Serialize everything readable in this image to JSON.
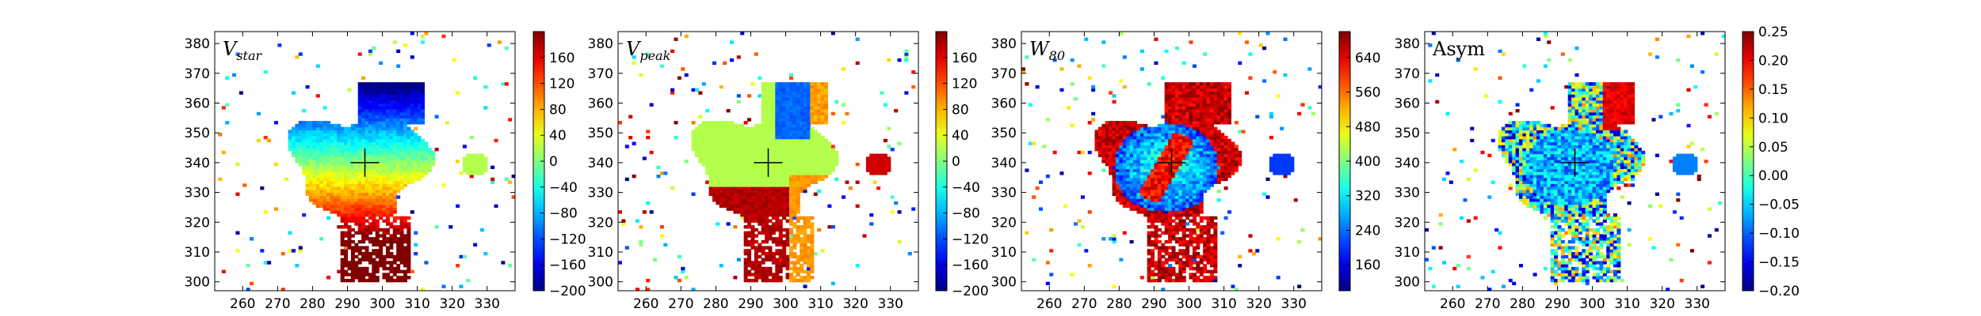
{
  "figure": {
    "background": "#ffffff"
  },
  "chart_data": [
    {
      "type": "heatmap",
      "label_main": "V",
      "label_sub": "star",
      "xlim": [
        252,
        338
      ],
      "ylim": [
        297,
        384
      ],
      "xticks": [
        "260",
        "270",
        "280",
        "290",
        "300",
        "310",
        "320",
        "330"
      ],
      "yticks": [
        "300",
        "310",
        "320",
        "330",
        "340",
        "350",
        "360",
        "370",
        "380"
      ],
      "colorbar": {
        "vmin": -200,
        "vmax": 200,
        "ticks": [
          "160",
          "120",
          "80",
          "40",
          "0",
          "−40",
          "−80",
          "−120",
          "−160",
          "−200"
        ]
      },
      "center_marker": [
        295,
        340
      ],
      "pattern": "vstar"
    },
    {
      "type": "heatmap",
      "label_main": "V",
      "label_sub": "peak",
      "xlim": [
        252,
        338
      ],
      "ylim": [
        297,
        384
      ],
      "xticks": [
        "260",
        "270",
        "280",
        "290",
        "300",
        "310",
        "320",
        "330"
      ],
      "yticks": [
        "300",
        "310",
        "320",
        "330",
        "340",
        "350",
        "360",
        "370",
        "380"
      ],
      "colorbar": {
        "vmin": -200,
        "vmax": 200,
        "ticks": [
          "160",
          "120",
          "80",
          "40",
          "0",
          "−40",
          "−80",
          "−120",
          "−160",
          "−200"
        ]
      },
      "center_marker": [
        295,
        340
      ],
      "pattern": "vpeak"
    },
    {
      "type": "heatmap",
      "label_main": "W",
      "label_sub": "80",
      "xlim": [
        252,
        338
      ],
      "ylim": [
        297,
        384
      ],
      "xticks": [
        "260",
        "270",
        "280",
        "290",
        "300",
        "310",
        "320",
        "330"
      ],
      "yticks": [
        "300",
        "310",
        "320",
        "330",
        "340",
        "350",
        "360",
        "370",
        "380"
      ],
      "colorbar": {
        "vmin": 100,
        "vmax": 700,
        "ticks": [
          "640",
          "560",
          "480",
          "400",
          "320",
          "240",
          "160"
        ]
      },
      "center_marker": [
        295,
        340
      ],
      "pattern": "w80"
    },
    {
      "type": "heatmap",
      "label_main": "Asym",
      "label_sub": "",
      "xlim": [
        252,
        338
      ],
      "ylim": [
        297,
        384
      ],
      "xticks": [
        "260",
        "270",
        "280",
        "290",
        "300",
        "310",
        "320",
        "330"
      ],
      "yticks": [
        "300",
        "310",
        "320",
        "330",
        "340",
        "350",
        "360",
        "370",
        "380"
      ],
      "colorbar": {
        "vmin": -0.2,
        "vmax": 0.25,
        "ticks": [
          "0.25",
          "0.20",
          "0.15",
          "0.10",
          "0.05",
          "0.00",
          "−0.05",
          "−0.10",
          "−0.15",
          "−0.20"
        ]
      },
      "center_marker": [
        295,
        340
      ],
      "pattern": "asym"
    }
  ]
}
